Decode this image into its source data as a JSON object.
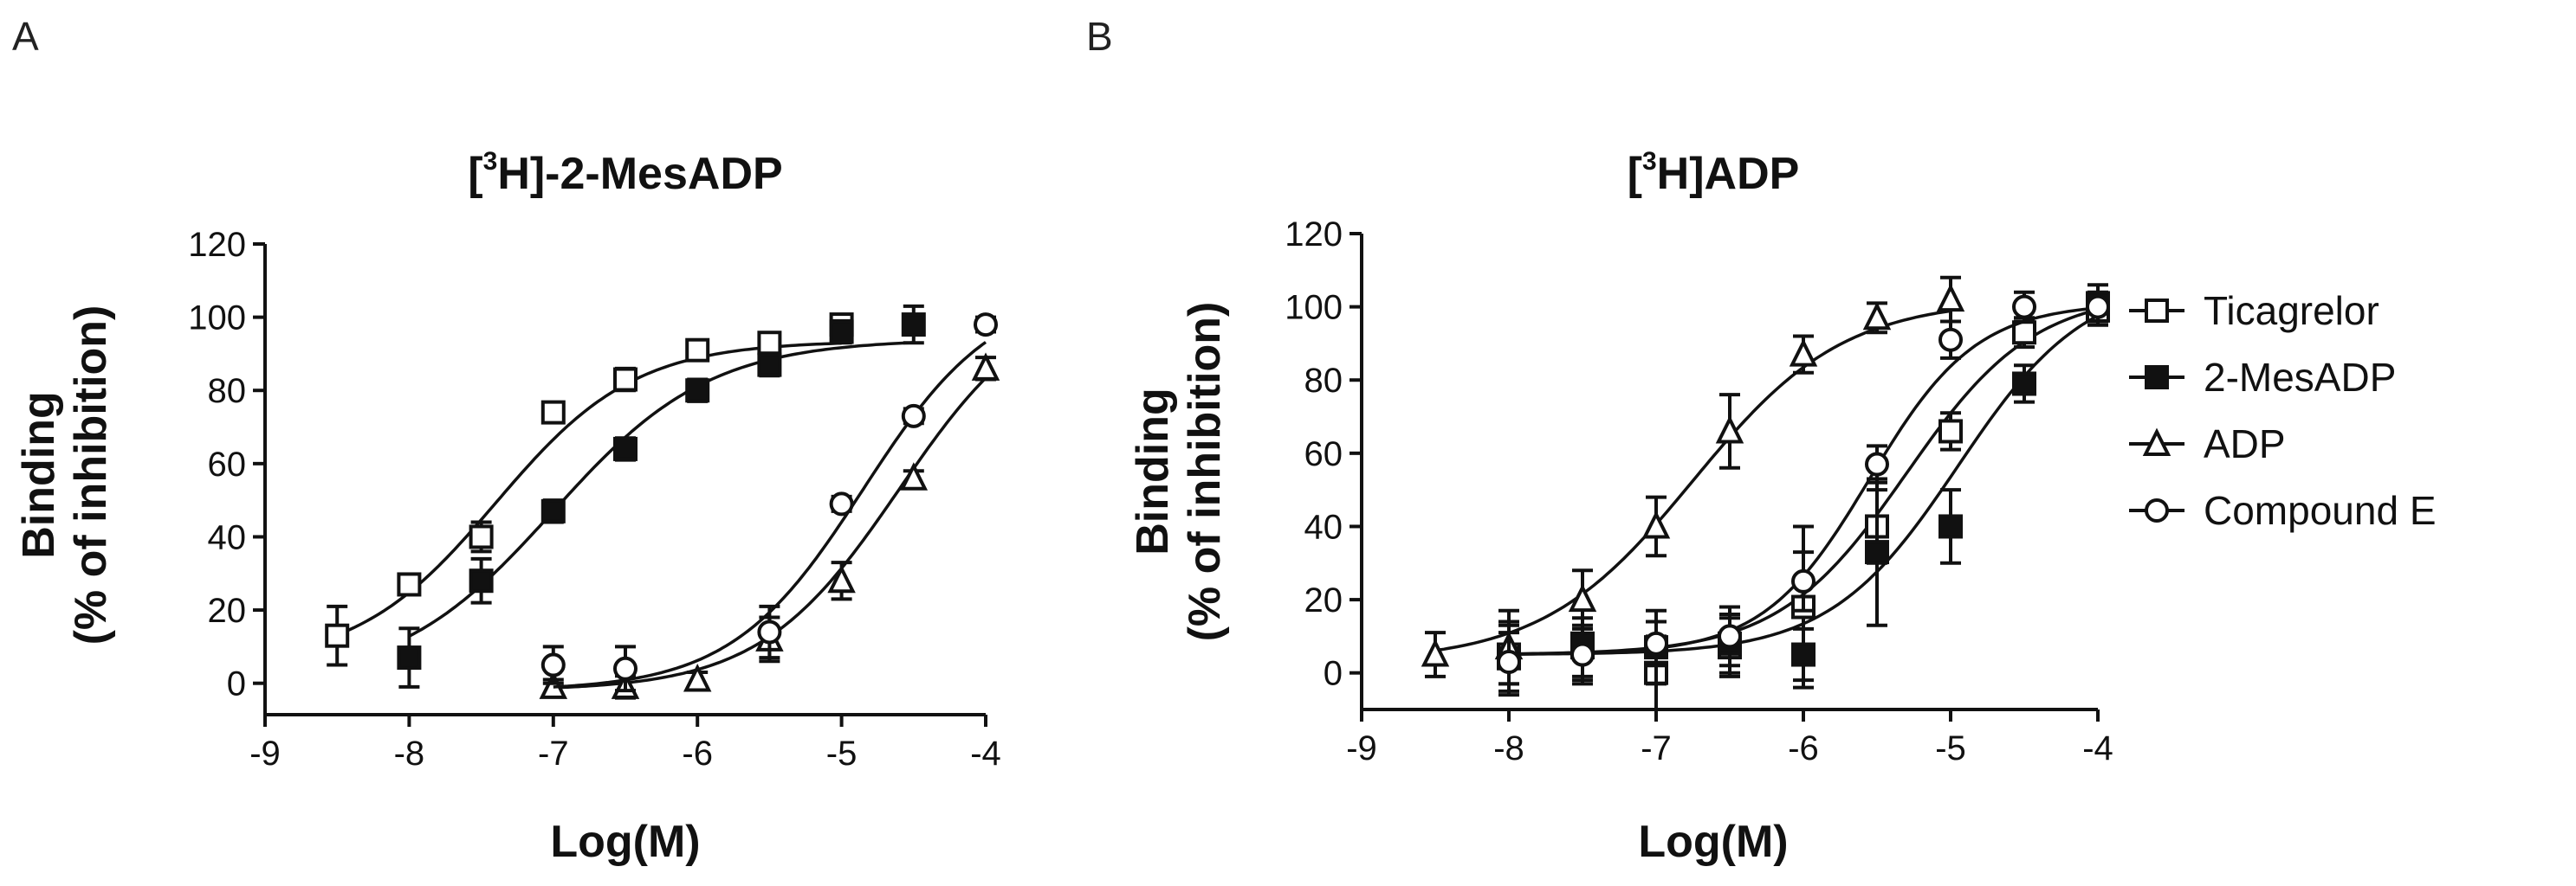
{
  "figure": {
    "panels": [
      {
        "letter": "A"
      },
      {
        "letter": "B"
      }
    ]
  },
  "legend": {
    "entries": [
      {
        "label": "Ticagrelor",
        "marker": "square-open"
      },
      {
        "label": "2-MesADP",
        "marker": "square-filled"
      },
      {
        "label": "ADP",
        "marker": "triangle-open"
      },
      {
        "label": "Compound  E",
        "marker": "circle-open"
      }
    ]
  },
  "chart_data": [
    {
      "type": "scatter",
      "panel": "A",
      "title_prefix": "[",
      "title_sup": "3",
      "title_suffix": "H]-2-MesADP",
      "xlabel": "Log(M)",
      "ylabel_line1": "Binding",
      "ylabel_line2": "(% of inhibition)",
      "xlim": [
        -9,
        -4
      ],
      "ylim": [
        -10,
        120
      ],
      "xticks": [
        -9,
        -8,
        -7,
        -6,
        -5,
        -4
      ],
      "yticks": [
        0,
        20,
        40,
        60,
        80,
        100,
        120
      ],
      "series": [
        {
          "name": "Ticagrelor",
          "marker": "square-open",
          "x": [
            -8.5,
            -8,
            -7.5,
            -7,
            -6.5,
            -6,
            -5.5,
            -5
          ],
          "y": [
            13,
            27,
            40,
            74,
            83,
            91,
            93,
            98
          ],
          "err": [
            8,
            2,
            4,
            2,
            3,
            2,
            2,
            2
          ],
          "fit": {
            "bottom": 5,
            "top": 93.5,
            "logec50": -7.4,
            "hill": 0.9
          }
        },
        {
          "name": "2-MesADP",
          "marker": "square-filled",
          "x": [
            -8,
            -7.5,
            -7,
            -6.5,
            -6,
            -5.5,
            -5,
            -4.5
          ],
          "y": [
            7,
            28,
            47,
            64,
            80,
            87,
            96,
            98
          ],
          "err": [
            8,
            6,
            3,
            3,
            3,
            3,
            3,
            5
          ],
          "fit": {
            "bottom": 0,
            "top": 94,
            "logec50": -7.0,
            "hill": 0.8
          }
        },
        {
          "name": "ADP",
          "marker": "triangle-open",
          "x": [
            -7,
            -6.5,
            -6,
            -5.5,
            -5,
            -4.5,
            -4
          ],
          "y": [
            -1,
            -1,
            1,
            12,
            28,
            56,
            86
          ],
          "err": [
            2,
            3,
            2,
            6,
            5,
            2,
            3
          ],
          "fit": {
            "bottom": -2,
            "top": 108,
            "logec50": -4.6,
            "hill": 0.9
          }
        },
        {
          "name": "Compound  E",
          "marker": "circle-open",
          "x": [
            -7,
            -6.5,
            -5.5,
            -5,
            -4.5,
            -4
          ],
          "y": [
            5,
            4,
            14,
            49,
            73,
            98
          ],
          "err": [
            5,
            6,
            7,
            2,
            2,
            2
          ],
          "fit": {
            "bottom": -2,
            "top": 108,
            "logec50": -4.85,
            "hill": 0.95
          }
        }
      ]
    },
    {
      "type": "scatter",
      "panel": "B",
      "title_prefix": "[",
      "title_sup": "3",
      "title_suffix": "H]ADP",
      "xlabel": "Log(M)",
      "ylabel_line1": "Binding",
      "ylabel_line2": "(% of inhibition)",
      "xlim": [
        -9,
        -4
      ],
      "ylim": [
        -10,
        120
      ],
      "xticks": [
        -9,
        -8,
        -7,
        -6,
        -5,
        -4
      ],
      "yticks": [
        0,
        20,
        40,
        60,
        80,
        100,
        120
      ],
      "series": [
        {
          "name": "Ticagrelor",
          "marker": "square-open",
          "x": [
            -8,
            -7.5,
            -7,
            -6.5,
            -6,
            -5.5,
            -5,
            -4.5,
            -4
          ],
          "y": [
            5,
            7,
            0,
            7,
            18,
            40,
            66,
            93,
            99
          ],
          "err": [
            8,
            8,
            10,
            8,
            22,
            10,
            5,
            4,
            4
          ],
          "fit": {
            "bottom": 5,
            "top": 104,
            "logec50": -5.3,
            "hill": 1.0
          }
        },
        {
          "name": "2-MesADP",
          "marker": "square-filled",
          "x": [
            -8,
            -7.5,
            -7,
            -6.5,
            -6,
            -5.5,
            -5,
            -4.5,
            -4
          ],
          "y": [
            4,
            8,
            7,
            8,
            5,
            33,
            40,
            79,
            101
          ],
          "err": [
            10,
            10,
            10,
            8,
            7,
            20,
            10,
            5,
            5
          ],
          "fit": {
            "bottom": 5,
            "top": 108,
            "logec50": -4.95,
            "hill": 1.0
          }
        },
        {
          "name": "ADP",
          "marker": "triangle-open",
          "x": [
            -8.5,
            -8,
            -7.5,
            -7,
            -6.5,
            -6,
            -5.5,
            -5
          ],
          "y": [
            5,
            7,
            20,
            40,
            66,
            87,
            97,
            102
          ],
          "err": [
            6,
            10,
            8,
            8,
            10,
            5,
            4,
            6
          ],
          "fit": {
            "bottom": 3,
            "top": 102,
            "logec50": -6.75,
            "hill": 0.85
          }
        },
        {
          "name": "Compound  E",
          "marker": "circle-open",
          "x": [
            -8,
            -7.5,
            -7,
            -6.5,
            -6,
            -5.5,
            -5,
            -4.5,
            -4
          ],
          "y": [
            3,
            5,
            8,
            10,
            25,
            57,
            91,
            100,
            100
          ],
          "err": [
            8,
            8,
            6,
            8,
            8,
            5,
            5,
            4,
            4
          ],
          "fit": {
            "bottom": 5,
            "top": 101,
            "logec50": -5.55,
            "hill": 1.2
          }
        }
      ]
    }
  ]
}
